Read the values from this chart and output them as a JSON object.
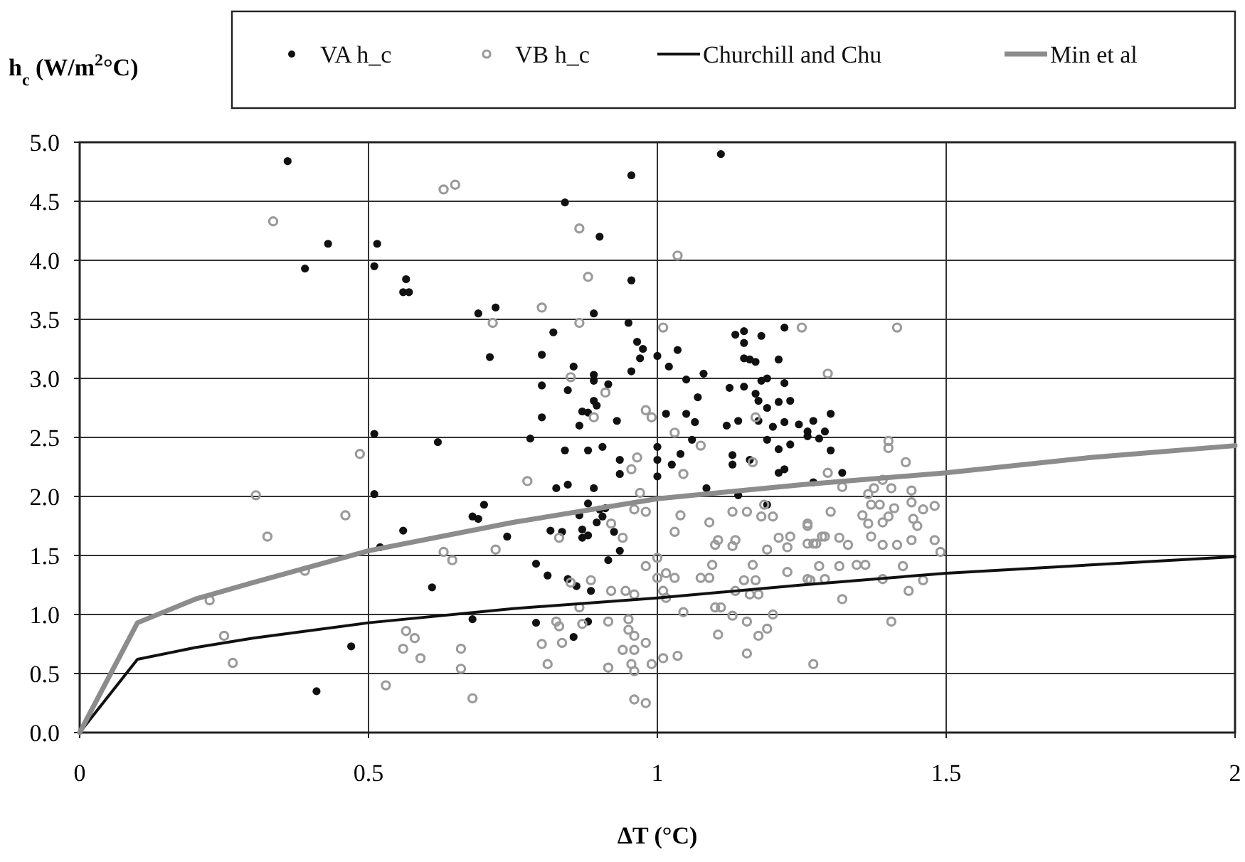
{
  "chart_data": {
    "type": "scatter",
    "xlabel": "ΔT (°C)",
    "ylabel": "h$_{c}$ (W/m$^{2}$°C)",
    "xlim": [
      0,
      2
    ],
    "ylim": [
      0,
      5
    ],
    "xticks": [
      0,
      0.5,
      1,
      1.5,
      2
    ],
    "yticks": [
      {
        "value": 0,
        "label": "0.0"
      },
      {
        "value": 0.5,
        "label": "0.5"
      },
      {
        "value": 1,
        "label": "1.0"
      },
      {
        "value": 1.5,
        "label": "1.5"
      },
      {
        "value": 2,
        "label": "2.0"
      },
      {
        "value": 2.5,
        "label": "2.5"
      },
      {
        "value": 3,
        "label": "3.0"
      },
      {
        "value": 3.5,
        "label": "3.5"
      },
      {
        "value": 4,
        "label": "4.0"
      },
      {
        "value": 4.5,
        "label": "4.5"
      },
      {
        "value": 5,
        "label": "5.0"
      }
    ],
    "grid": true,
    "legend": "top",
    "marker": "circle",
    "series": [
      {
        "name": "VA h_c",
        "color": "#111111",
        "x": [
          0.36,
          0.43,
          0.515,
          0.39,
          0.51,
          0.565,
          0.56,
          0.57,
          0.69,
          0.51,
          0.62,
          0.51,
          0.56,
          0.52,
          0.68,
          0.69,
          0.7,
          0.61,
          0.68,
          0.47,
          0.41,
          0.955,
          1.11,
          0.84,
          0.9,
          0.955,
          0.72,
          0.89,
          0.95,
          0.82,
          0.71,
          0.8,
          0.965,
          0.975,
          0.97,
          1.0,
          1.035,
          0.855,
          0.955,
          0.8,
          0.845,
          0.89,
          0.89,
          0.915,
          1.02,
          1.05,
          1.08,
          1.07,
          1.135,
          1.15,
          1.15,
          1.18,
          1.22,
          1.15,
          1.16,
          1.17,
          1.21,
          1.125,
          1.15,
          1.17,
          1.18,
          1.19,
          1.22,
          1.175,
          1.19,
          1.21,
          1.23,
          0.89,
          0.895,
          0.87,
          0.88,
          0.8,
          0.93,
          0.865,
          1.015,
          1.05,
          1.065,
          1.12,
          1.14,
          1.175,
          1.2,
          1.22,
          1.245,
          1.26,
          0.78,
          1.0,
          1.06,
          1.13,
          1.19,
          1.21,
          1.23,
          1.26,
          1.28,
          0.84,
          0.88,
          0.905,
          0.935,
          1.0,
          1.025,
          1.04,
          1.13,
          1.16,
          1.21,
          1.22,
          1.0,
          0.825,
          0.845,
          0.89,
          0.88,
          0.9,
          0.91,
          0.905,
          0.895,
          0.865,
          0.935,
          0.74,
          0.815,
          0.835,
          0.87,
          0.87,
          0.88,
          0.925,
          0.935,
          0.915,
          0.79,
          0.81,
          0.845,
          0.86,
          0.885,
          0.79,
          0.88,
          0.855,
          1.085,
          1.14,
          1.19,
          1.27,
          1.3,
          1.32,
          1.3,
          1.27,
          1.29
        ],
        "values": [
          4.84,
          4.14,
          4.14,
          3.93,
          3.95,
          3.84,
          3.73,
          3.73,
          3.55,
          2.53,
          2.46,
          2.02,
          1.71,
          1.57,
          1.83,
          1.81,
          1.93,
          1.23,
          0.96,
          0.73,
          0.35,
          4.72,
          4.9,
          4.49,
          4.2,
          3.83,
          3.6,
          3.55,
          3.47,
          3.39,
          3.18,
          3.2,
          3.31,
          3.25,
          3.17,
          3.19,
          3.24,
          3.1,
          3.06,
          2.94,
          2.9,
          3.03,
          2.98,
          2.95,
          3.1,
          2.99,
          3.04,
          2.84,
          3.37,
          3.4,
          3.3,
          3.36,
          3.43,
          3.17,
          3.16,
          3.14,
          3.16,
          2.92,
          2.93,
          2.87,
          2.98,
          3.0,
          2.96,
          2.81,
          2.75,
          2.8,
          2.81,
          2.81,
          2.77,
          2.72,
          2.71,
          2.67,
          2.64,
          2.6,
          2.7,
          2.7,
          2.63,
          2.6,
          2.64,
          2.64,
          2.59,
          2.63,
          2.61,
          2.55,
          2.49,
          2.42,
          2.48,
          2.35,
          2.48,
          2.4,
          2.44,
          2.51,
          2.49,
          2.39,
          2.39,
          2.42,
          2.31,
          2.31,
          2.27,
          2.36,
          2.27,
          2.31,
          2.2,
          2.23,
          2.17,
          2.07,
          2.1,
          2.07,
          1.94,
          1.89,
          1.9,
          1.83,
          1.78,
          1.84,
          2.19,
          1.66,
          1.71,
          1.7,
          1.72,
          1.65,
          1.67,
          1.7,
          1.54,
          1.46,
          1.43,
          1.33,
          1.3,
          1.24,
          1.2,
          0.93,
          0.94,
          0.81,
          2.07,
          2.01,
          1.93,
          2.12,
          2.39,
          2.2,
          2.7,
          2.64,
          2.55
        ]
      },
      {
        "name": "VB h_c",
        "marker": "circle",
        "color": "#9a9a9a",
        "x": [
          0.63,
          0.65,
          0.335,
          0.485,
          0.305,
          0.46,
          0.325,
          0.39,
          0.225,
          0.25,
          0.265,
          0.63,
          0.645,
          0.565,
          0.58,
          0.56,
          0.59,
          0.66,
          0.66,
          0.53,
          0.68,
          0.865,
          1.035,
          0.88,
          0.8,
          0.715,
          0.865,
          1.01,
          1.25,
          0.85,
          0.91,
          0.98,
          0.99,
          0.89,
          1.03,
          1.075,
          1.17,
          1.165,
          1.045,
          0.965,
          0.955,
          0.775,
          0.97,
          1.04,
          1.03,
          0.96,
          0.98,
          0.92,
          0.94,
          0.83,
          0.72,
          1.09,
          1.13,
          1.155,
          1.185,
          1.18,
          1.2,
          1.105,
          1.1,
          1.135,
          1.13,
          1.19,
          1.21,
          1.23,
          1.225,
          1.26,
          1.27,
          1.285,
          0.98,
          1.0,
          1.0,
          1.015,
          1.03,
          1.075,
          1.09,
          1.095,
          1.165,
          1.15,
          1.17,
          1.135,
          1.16,
          1.175,
          1.225,
          1.265,
          0.885,
          0.85,
          0.92,
          0.945,
          0.96,
          1.01,
          1.015,
          1.045,
          0.865,
          0.825,
          0.83,
          0.915,
          0.95,
          0.95,
          0.96,
          0.98,
          1.1,
          1.11,
          1.13,
          1.155,
          1.175,
          1.19,
          1.2,
          1.105,
          0.8,
          0.835,
          0.87,
          0.94,
          0.96,
          0.81,
          0.915,
          0.955,
          0.96,
          0.99,
          1.01,
          1.035,
          1.155,
          0.96,
          0.98,
          1.27,
          1.4,
          1.4,
          1.43,
          1.295,
          1.32,
          1.365,
          1.375,
          1.39,
          1.405,
          1.44,
          1.37,
          1.385,
          1.41,
          1.44,
          1.46,
          1.48,
          1.355,
          1.365,
          1.39,
          1.4,
          1.443,
          1.45,
          1.3,
          1.26,
          1.26,
          1.275,
          1.29,
          1.315,
          1.33,
          1.37,
          1.39,
          1.415,
          1.44,
          1.48,
          1.49,
          1.28,
          1.315,
          1.345,
          1.36,
          1.425,
          1.46,
          1.26,
          1.29,
          1.39,
          1.435,
          1.32,
          1.405,
          1.415,
          1.295
        ],
        "values": [
          4.6,
          4.64,
          4.33,
          2.36,
          2.01,
          1.84,
          1.66,
          1.37,
          1.12,
          0.82,
          0.59,
          1.53,
          1.46,
          0.86,
          0.8,
          0.71,
          0.63,
          0.71,
          0.54,
          0.4,
          0.29,
          4.27,
          4.04,
          3.86,
          3.6,
          3.47,
          3.47,
          3.43,
          3.43,
          3.01,
          2.88,
          2.73,
          2.67,
          2.67,
          2.54,
          2.43,
          2.67,
          2.29,
          2.19,
          2.33,
          2.23,
          2.13,
          2.03,
          1.84,
          1.7,
          1.89,
          1.87,
          1.77,
          1.65,
          1.65,
          1.55,
          1.78,
          1.87,
          1.87,
          1.93,
          1.83,
          1.83,
          1.63,
          1.59,
          1.63,
          1.58,
          1.55,
          1.65,
          1.66,
          1.57,
          1.75,
          1.6,
          1.66,
          1.41,
          1.48,
          1.31,
          1.35,
          1.31,
          1.31,
          1.31,
          1.42,
          1.42,
          1.29,
          1.29,
          1.2,
          1.17,
          1.17,
          1.36,
          1.29,
          1.29,
          1.27,
          1.2,
          1.2,
          1.17,
          1.2,
          1.14,
          1.02,
          1.06,
          0.94,
          0.9,
          0.94,
          0.96,
          0.87,
          0.82,
          0.76,
          1.06,
          1.06,
          0.99,
          0.94,
          0.82,
          0.88,
          1.0,
          0.83,
          0.75,
          0.76,
          0.92,
          0.7,
          0.7,
          0.58,
          0.55,
          0.58,
          0.52,
          0.58,
          0.63,
          0.65,
          0.67,
          0.28,
          0.25,
          0.58,
          2.47,
          2.41,
          2.29,
          2.2,
          2.08,
          2.02,
          2.07,
          2.14,
          2.07,
          2.05,
          1.93,
          1.93,
          1.9,
          1.95,
          1.89,
          1.92,
          1.84,
          1.77,
          1.78,
          1.83,
          1.81,
          1.75,
          1.87,
          1.77,
          1.6,
          1.6,
          1.66,
          1.65,
          1.59,
          1.66,
          1.59,
          1.59,
          1.63,
          1.63,
          1.53,
          1.41,
          1.41,
          1.42,
          1.42,
          1.41,
          1.29,
          1.3,
          1.3,
          1.3,
          1.2,
          1.13,
          0.94,
          3.43,
          3.04
        ]
      },
      {
        "name": "Churchill and Chu",
        "type": "line",
        "marker": "none",
        "color": "#111111",
        "x": [
          0,
          0.1,
          0.2,
          0.3,
          0.5,
          0.75,
          1,
          1.25,
          1.5,
          1.75,
          2
        ],
        "values": [
          0,
          0.62,
          0.72,
          0.8,
          0.93,
          1.05,
          1.14,
          1.25,
          1.35,
          1.42,
          1.49
        ]
      },
      {
        "name": "Min et al",
        "type": "line",
        "marker": "none",
        "color": "#8c8c8c",
        "x": [
          0,
          0.1,
          0.2,
          0.3,
          0.5,
          0.75,
          1,
          1.25,
          1.5,
          1.75,
          2
        ],
        "values": [
          0,
          0.93,
          1.13,
          1.27,
          1.54,
          1.78,
          1.98,
          2.1,
          2.2,
          2.33,
          2.43
        ]
      }
    ]
  }
}
